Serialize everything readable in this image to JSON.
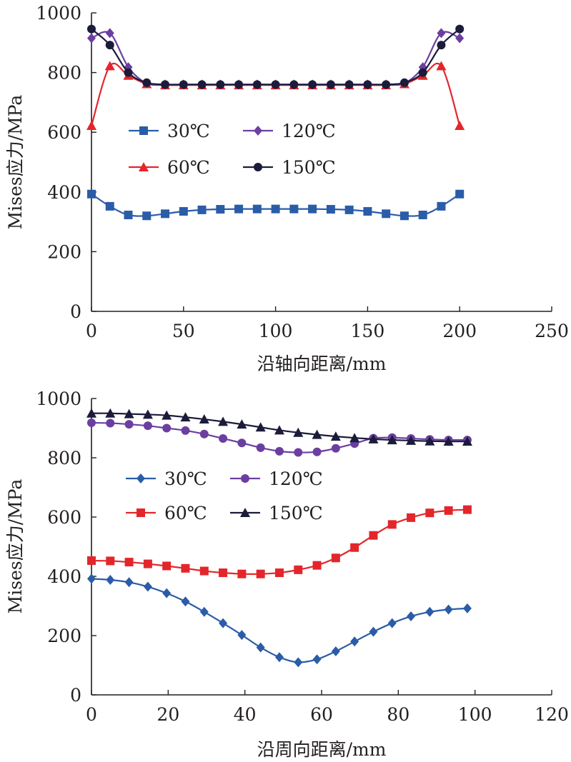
{
  "chart_data": [
    {
      "type": "line",
      "xlabel": "沿轴向距离/mm",
      "ylabel": "Mises应力/MPa",
      "xlim": [
        0,
        250
      ],
      "ylim": [
        0,
        1000
      ],
      "xticks": [
        "0",
        "50",
        "100",
        "150",
        "200",
        "250"
      ],
      "yticks": [
        "0",
        "200",
        "400",
        "600",
        "800",
        "1000"
      ],
      "grid": false,
      "legend_placement": "center-left, two columns",
      "series": [
        {
          "name": "30℃",
          "color": "#2a5ca8",
          "marker": "square",
          "x": [
            0,
            10,
            20,
            30,
            40,
            50,
            60,
            70,
            80,
            90,
            100,
            110,
            120,
            130,
            140,
            150,
            160,
            170,
            180,
            190,
            200
          ],
          "y": [
            393,
            352,
            323,
            320,
            327,
            335,
            340,
            342,
            343,
            343,
            343,
            343,
            343,
            342,
            340,
            335,
            327,
            320,
            323,
            352,
            393
          ]
        },
        {
          "name": "60℃",
          "color": "#e3262b",
          "marker": "triangle",
          "x": [
            0,
            10,
            20,
            30,
            40,
            50,
            60,
            70,
            80,
            90,
            100,
            110,
            120,
            130,
            140,
            150,
            160,
            170,
            180,
            190,
            200
          ],
          "y": [
            622,
            822,
            790,
            762,
            758,
            758,
            758,
            758,
            758,
            758,
            758,
            758,
            758,
            758,
            758,
            758,
            758,
            762,
            790,
            822,
            622
          ]
        },
        {
          "name": "120℃",
          "color": "#6b3fa0",
          "marker": "diamond",
          "x": [
            0,
            10,
            20,
            30,
            40,
            50,
            60,
            70,
            80,
            90,
            100,
            110,
            120,
            130,
            140,
            150,
            160,
            170,
            180,
            190,
            200
          ],
          "y": [
            915,
            932,
            818,
            764,
            760,
            760,
            760,
            760,
            760,
            760,
            760,
            760,
            760,
            760,
            760,
            760,
            760,
            764,
            818,
            932,
            915
          ]
        },
        {
          "name": "150℃",
          "color": "#1b1b3a",
          "marker": "circle",
          "x": [
            0,
            10,
            20,
            30,
            40,
            50,
            60,
            70,
            80,
            90,
            100,
            110,
            120,
            130,
            140,
            150,
            160,
            170,
            180,
            190,
            200
          ],
          "y": [
            946,
            892,
            800,
            766,
            760,
            760,
            760,
            760,
            760,
            760,
            760,
            760,
            760,
            760,
            760,
            760,
            760,
            766,
            800,
            892,
            946
          ]
        }
      ]
    },
    {
      "type": "line",
      "xlabel": "沿周向距离/mm",
      "ylabel": "Mises应力/MPa",
      "xlim": [
        0,
        120
      ],
      "ylim": [
        0,
        1000
      ],
      "xticks": [
        "0",
        "20",
        "40",
        "60",
        "80",
        "100",
        "120"
      ],
      "yticks": [
        "0",
        "200",
        "400",
        "600",
        "800",
        "1000"
      ],
      "grid": false,
      "legend_placement": "center-left, two columns",
      "series": [
        {
          "name": "30℃",
          "color": "#2a5ca8",
          "marker": "diamond",
          "x": [
            0,
            4.9,
            9.8,
            14.7,
            19.6,
            24.5,
            29.4,
            34.3,
            39.2,
            44.1,
            49,
            53.9,
            58.8,
            63.7,
            68.6,
            73.5,
            78.4,
            83.3,
            88.2,
            93.1,
            98
          ],
          "y": [
            392,
            388,
            380,
            365,
            343,
            315,
            280,
            242,
            202,
            160,
            127,
            110,
            120,
            147,
            180,
            213,
            242,
            265,
            280,
            288,
            292
          ]
        },
        {
          "name": "60℃",
          "color": "#e3262b",
          "marker": "square",
          "x": [
            0,
            4.9,
            9.8,
            14.7,
            19.6,
            24.5,
            29.4,
            34.3,
            39.2,
            44.1,
            49,
            53.9,
            58.8,
            63.7,
            68.6,
            73.5,
            78.4,
            83.3,
            88.2,
            93.1,
            98
          ],
          "y": [
            453,
            452,
            448,
            442,
            435,
            427,
            418,
            412,
            408,
            408,
            412,
            422,
            437,
            462,
            497,
            538,
            575,
            598,
            614,
            622,
            625
          ]
        },
        {
          "name": "120℃",
          "color": "#6b3fa0",
          "marker": "circle",
          "x": [
            0,
            4.9,
            9.8,
            14.7,
            19.6,
            24.5,
            29.4,
            34.3,
            39.2,
            44.1,
            49,
            53.9,
            58.8,
            63.7,
            68.6,
            73.5,
            78.4,
            83.3,
            88.2,
            93.1,
            98
          ],
          "y": [
            918,
            917,
            913,
            908,
            900,
            892,
            880,
            865,
            850,
            834,
            822,
            818,
            820,
            832,
            848,
            866,
            868,
            865,
            862,
            860,
            860
          ]
        },
        {
          "name": "150℃",
          "color": "#1b1b3a",
          "marker": "triangle",
          "x": [
            0,
            4.9,
            9.8,
            14.7,
            19.6,
            24.5,
            29.4,
            34.3,
            39.2,
            44.1,
            49,
            53.9,
            58.8,
            63.7,
            68.6,
            73.5,
            78.4,
            83.3,
            88.2,
            93.1,
            98
          ],
          "y": [
            950,
            950,
            948,
            946,
            943,
            937,
            930,
            922,
            913,
            903,
            893,
            885,
            878,
            872,
            867,
            863,
            860,
            858,
            856,
            855,
            855
          ]
        }
      ]
    }
  ]
}
